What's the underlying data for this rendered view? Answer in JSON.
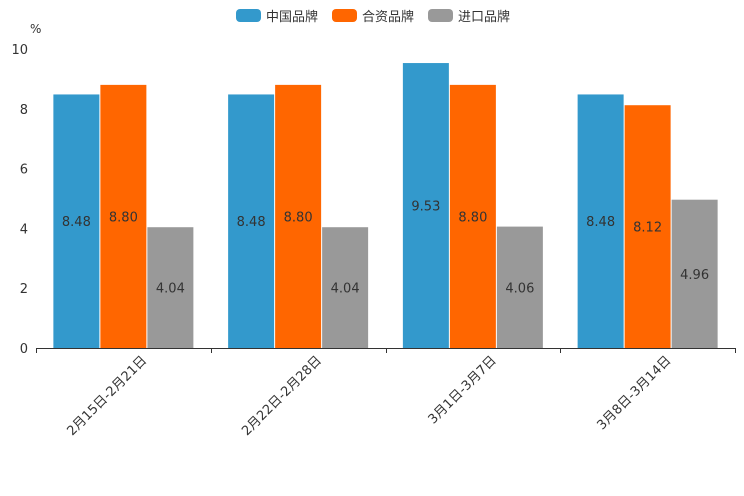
{
  "chart_data": {
    "type": "bar",
    "ylabel": "%",
    "ylim": [
      0,
      10
    ],
    "yticks": [
      0,
      2,
      4,
      6,
      8,
      10
    ],
    "categories": [
      "2月15日-2月21日",
      "2月22日-2月28日",
      "3月1日-3月7日",
      "3月8日-3月14日"
    ],
    "series": [
      {
        "name": "中国品牌",
        "color": "#3399cc",
        "values": [
          8.48,
          8.48,
          9.53,
          8.48
        ]
      },
      {
        "name": "合资品牌",
        "color": "#ff6600",
        "values": [
          8.8,
          8.8,
          8.8,
          8.12
        ]
      },
      {
        "name": "进口品牌",
        "color": "#999999",
        "values": [
          4.04,
          4.04,
          4.06,
          4.96
        ]
      }
    ],
    "legend_position": "top-center",
    "grid": false
  }
}
